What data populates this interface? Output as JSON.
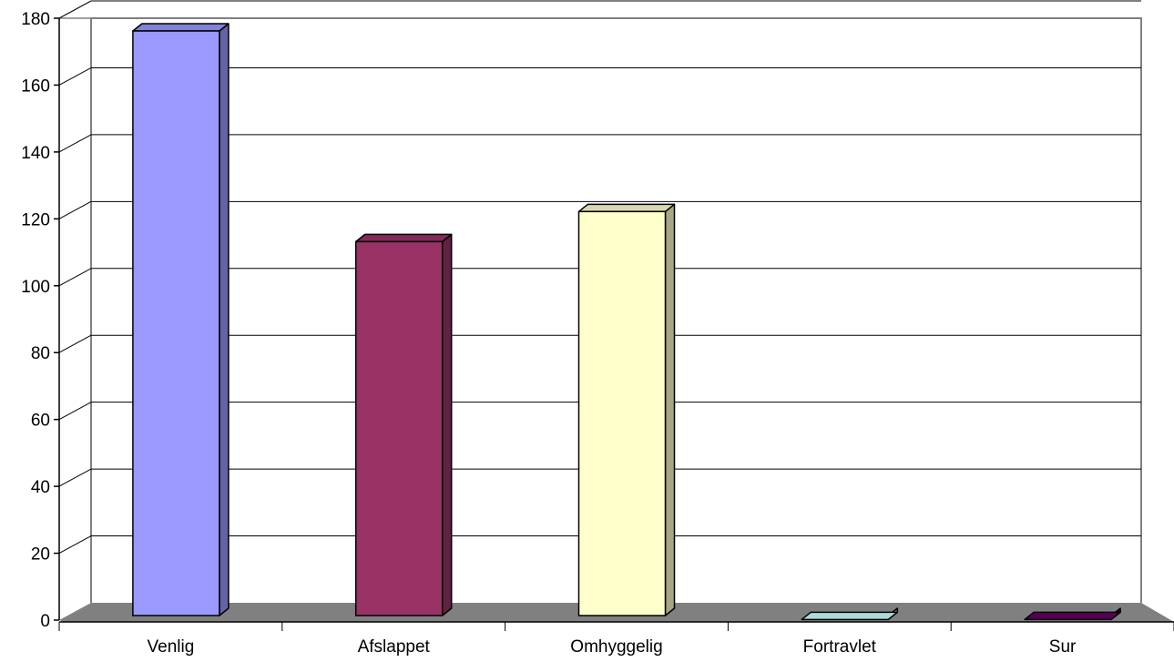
{
  "chart_data": {
    "type": "bar",
    "style": "3d-column",
    "categories": [
      "Venlig",
      "Afslappet",
      "Omhyggelig",
      "Fortravlet",
      "Sur"
    ],
    "values": [
      177,
      114,
      123,
      1,
      1
    ],
    "colors": [
      "#9999ff",
      "#993366",
      "#ffffcc",
      "#ccffff",
      "#660066"
    ],
    "yticks": [
      0,
      20,
      40,
      60,
      80,
      100,
      120,
      140,
      160,
      180
    ],
    "ylim": [
      0,
      180
    ],
    "grid": true,
    "legend": "none",
    "title": "",
    "xlabel": "",
    "ylabel": "",
    "floor_color": "#808080",
    "gridline_color": "#000000",
    "wall_border_color": "#808080"
  }
}
